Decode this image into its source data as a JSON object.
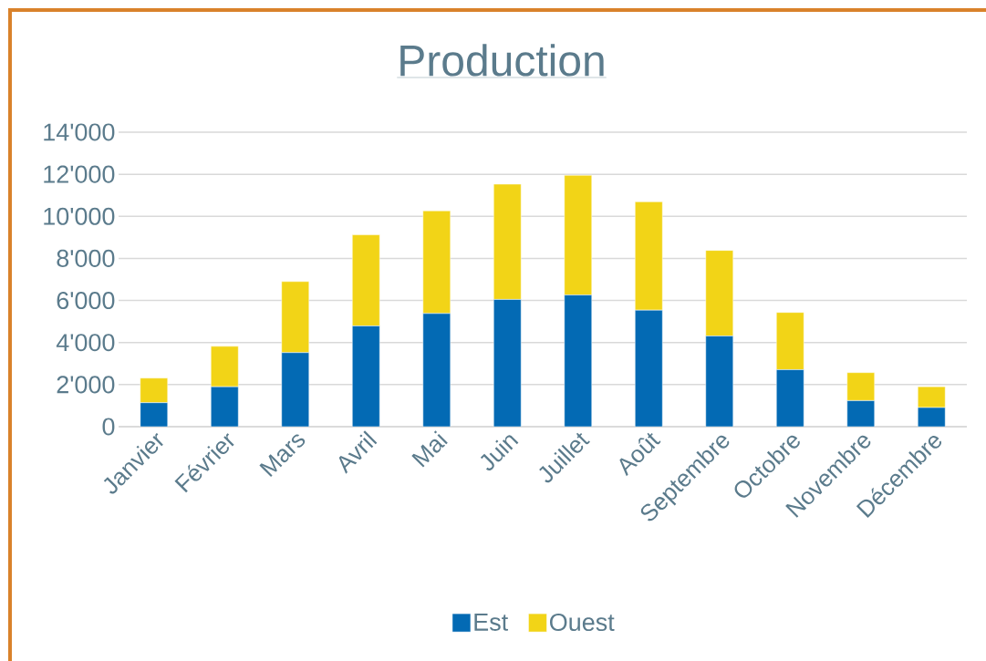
{
  "chart_data": {
    "type": "bar",
    "stacked": true,
    "title": "Production",
    "categories": [
      "Janvier",
      "Février",
      "Mars",
      "Avril",
      "Mai",
      "Juin",
      "Juillet",
      "Août",
      "Septembre",
      "Octobre",
      "Novembre",
      "Décembre"
    ],
    "series": [
      {
        "name": "Est",
        "color": "#036ab4",
        "values": [
          1140,
          1900,
          3520,
          4790,
          5380,
          6050,
          6260,
          5540,
          4310,
          2710,
          1240,
          910
        ]
      },
      {
        "name": "Ouest",
        "color": "#f2d417",
        "values": [
          1170,
          1920,
          3380,
          4330,
          4880,
          5480,
          5690,
          5150,
          4070,
          2720,
          1330,
          990
        ]
      }
    ],
    "ylim": [
      0,
      14000
    ],
    "yticks": [
      0,
      {
        "value": 2000,
        "label": "2'000"
      },
      {
        "value": 4000,
        "label": "4'000"
      },
      {
        "value": 6000,
        "label": "6'000"
      },
      {
        "value": 8000,
        "label": "8'000"
      },
      {
        "value": 10000,
        "label": "10'000"
      },
      {
        "value": 12000,
        "label": "12'000"
      },
      {
        "value": 14000,
        "label": "14'000"
      }
    ],
    "grid": "y",
    "legend": "bottom"
  }
}
